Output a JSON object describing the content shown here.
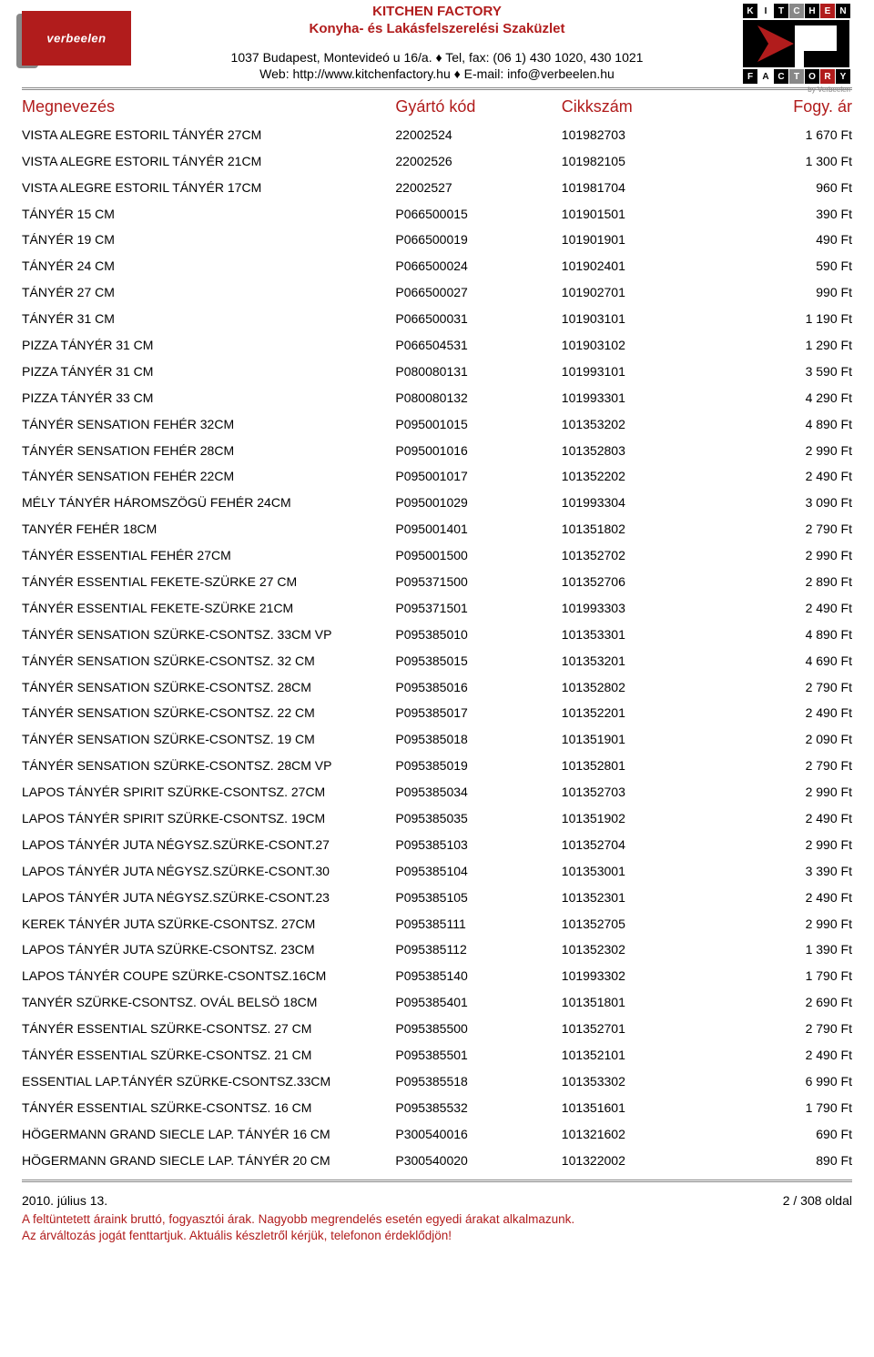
{
  "header": {
    "title": "KITCHEN FACTORY",
    "subtitle": "Konyha- és Lakásfelszerelési Szaküzlet",
    "address_line": "1037 Budapest, Montevideó u 16/a. ♦ Tel, fax: (06 1) 430 1020, 430 1021",
    "web_line": "Web: http://www.kitchenfactory.hu ♦ E-mail: info@verbeelen.hu",
    "logo_left_text": "verbeelen",
    "logo_right_word1": "KITCHEN",
    "logo_right_word2": "FACTORY",
    "logo_right_small": "by Verbeelen"
  },
  "columns": {
    "name": "Megnevezés",
    "code": "Gyártó kód",
    "item": "Cikkszám",
    "price": "Fogy. ár"
  },
  "rows": [
    {
      "name": "VISTA ALEGRE ESTORIL TÁNYÉR 27CM",
      "code": "22002524",
      "item": "101982703",
      "price": "1 670 Ft"
    },
    {
      "name": "VISTA ALEGRE ESTORIL TÁNYÉR 21CM",
      "code": "22002526",
      "item": "101982105",
      "price": "1 300 Ft"
    },
    {
      "name": "VISTA ALEGRE ESTORIL TÁNYÉR 17CM",
      "code": "22002527",
      "item": "101981704",
      "price": "960 Ft"
    },
    {
      "name": "TÁNYÉR 15 CM",
      "code": "P066500015",
      "item": "101901501",
      "price": "390 Ft"
    },
    {
      "name": "TÁNYÉR 19 CM",
      "code": "P066500019",
      "item": "101901901",
      "price": "490 Ft"
    },
    {
      "name": "TÁNYÉR 24 CM",
      "code": "P066500024",
      "item": "101902401",
      "price": "590 Ft"
    },
    {
      "name": "TÁNYÉR 27 CM",
      "code": "P066500027",
      "item": "101902701",
      "price": "990 Ft"
    },
    {
      "name": "TÁNYÉR 31 CM",
      "code": "P066500031",
      "item": "101903101",
      "price": "1 190 Ft"
    },
    {
      "name": "PIZZA TÁNYÉR 31 CM",
      "code": "P066504531",
      "item": "101903102",
      "price": "1 290 Ft"
    },
    {
      "name": "PIZZA TÁNYÉR 31 CM",
      "code": "P080080131",
      "item": "101993101",
      "price": "3 590 Ft"
    },
    {
      "name": "PIZZA TÁNYÉR 33 CM",
      "code": "P080080132",
      "item": "101993301",
      "price": "4 290 Ft"
    },
    {
      "name": "TÁNYÉR SENSATION FEHÉR 32CM",
      "code": "P095001015",
      "item": "101353202",
      "price": "4 890 Ft"
    },
    {
      "name": "TÁNYÉR SENSATION FEHÉR 28CM",
      "code": "P095001016",
      "item": "101352803",
      "price": "2 990 Ft"
    },
    {
      "name": "TÁNYÉR SENSATION FEHÉR 22CM",
      "code": "P095001017",
      "item": "101352202",
      "price": "2 490 Ft"
    },
    {
      "name": "MÉLY TÁNYÉR HÁROMSZÖGÜ FEHÉR 24CM",
      "code": "P095001029",
      "item": "101993304",
      "price": "3 090 Ft"
    },
    {
      "name": "TANYÉR FEHÉR 18CM",
      "code": "P095001401",
      "item": "101351802",
      "price": "2 790 Ft"
    },
    {
      "name": "TÁNYÉR ESSENTIAL FEHÉR 27CM",
      "code": "P095001500",
      "item": "101352702",
      "price": "2 990 Ft"
    },
    {
      "name": "TÁNYÉR ESSENTIAL FEKETE-SZÜRKE 27 CM",
      "code": "P095371500",
      "item": "101352706",
      "price": "2 890 Ft"
    },
    {
      "name": "TÁNYÉR ESSENTIAL FEKETE-SZÜRKE 21CM",
      "code": "P095371501",
      "item": "101993303",
      "price": "2 490 Ft"
    },
    {
      "name": "TÁNYÉR SENSATION SZÜRKE-CSONTSZ. 33CM VP",
      "code": "P095385010",
      "item": "101353301",
      "price": "4 890 Ft"
    },
    {
      "name": "TÁNYÉR SENSATION SZÜRKE-CSONTSZ. 32 CM",
      "code": "P095385015",
      "item": "101353201",
      "price": "4 690 Ft"
    },
    {
      "name": "TÁNYÉR SENSATION SZÜRKE-CSONTSZ. 28CM",
      "code": "P095385016",
      "item": "101352802",
      "price": "2 790 Ft"
    },
    {
      "name": "TÁNYÉR SENSATION SZÜRKE-CSONTSZ. 22 CM",
      "code": "P095385017",
      "item": "101352201",
      "price": "2 490 Ft"
    },
    {
      "name": "TÁNYÉR SENSATION SZÜRKE-CSONTSZ. 19 CM",
      "code": "P095385018",
      "item": "101351901",
      "price": "2 090 Ft"
    },
    {
      "name": "TÁNYÉR SENSATION SZÜRKE-CSONTSZ. 28CM VP",
      "code": "P095385019",
      "item": "101352801",
      "price": "2 790 Ft"
    },
    {
      "name": "LAPOS TÁNYÉR SPIRIT SZÜRKE-CSONTSZ. 27CM",
      "code": "P095385034",
      "item": "101352703",
      "price": "2 990 Ft"
    },
    {
      "name": "LAPOS TÁNYÉR SPIRIT SZÜRKE-CSONTSZ. 19CM",
      "code": "P095385035",
      "item": "101351902",
      "price": "2 490 Ft"
    },
    {
      "name": "LAPOS TÁNYÉR JUTA NÉGYSZ.SZÜRKE-CSONT.27",
      "code": "P095385103",
      "item": "101352704",
      "price": "2 990 Ft"
    },
    {
      "name": "LAPOS TÁNYÉR JUTA NÉGYSZ.SZÜRKE-CSONT.30",
      "code": "P095385104",
      "item": "101353001",
      "price": "3 390 Ft"
    },
    {
      "name": "LAPOS TÁNYÉR JUTA NÉGYSZ.SZÜRKE-CSONT.23",
      "code": "P095385105",
      "item": "101352301",
      "price": "2 490 Ft"
    },
    {
      "name": "KEREK TÁNYÉR JUTA SZÜRKE-CSONTSZ. 27CM",
      "code": "P095385111",
      "item": "101352705",
      "price": "2 990 Ft"
    },
    {
      "name": "LAPOS TÁNYÉR JUTA SZÜRKE-CSONTSZ. 23CM",
      "code": "P095385112",
      "item": "101352302",
      "price": "1 390 Ft"
    },
    {
      "name": "LAPOS TÁNYÉR COUPE SZÜRKE-CSONTSZ.16CM",
      "code": "P095385140",
      "item": "101993302",
      "price": "1 790 Ft"
    },
    {
      "name": "TANYÉR SZÜRKE-CSONTSZ. OVÁL BELSÖ 18CM",
      "code": "P095385401",
      "item": "101351801",
      "price": "2 690 Ft"
    },
    {
      "name": "TÁNYÉR ESSENTIAL SZÜRKE-CSONTSZ. 27 CM",
      "code": "P095385500",
      "item": "101352701",
      "price": "2 790 Ft"
    },
    {
      "name": "TÁNYÉR ESSENTIAL SZÜRKE-CSONTSZ. 21 CM",
      "code": "P095385501",
      "item": "101352101",
      "price": "2 490 Ft"
    },
    {
      "name": "ESSENTIAL LAP.TÁNYÉR SZÜRKE-CSONTSZ.33CM",
      "code": "P095385518",
      "item": "101353302",
      "price": "6 990 Ft"
    },
    {
      "name": "TÁNYÉR ESSENTIAL SZÜRKE-CSONTSZ. 16 CM",
      "code": "P095385532",
      "item": "101351601",
      "price": "1 790 Ft"
    },
    {
      "name": "HÖGERMANN GRAND SIECLE LAP. TÁNYÉR 16 CM",
      "code": "P300540016",
      "item": "101321602",
      "price": "690 Ft"
    },
    {
      "name": "HÖGERMANN GRAND SIECLE LAP. TÁNYÉR 20 CM",
      "code": "P300540020",
      "item": "101322002",
      "price": "890 Ft"
    }
  ],
  "footer": {
    "date": "2010. július 13.",
    "page": "2 / 308 oldal",
    "note1": "A feltüntetett áraink bruttó, fogyasztói árak. Nagyobb megrendelés esetén egyedi árakat alkalmazunk.",
    "note2": "Az árváltozás jogát fenttartjuk. Aktuális készletről kérjük, telefonon érdeklődjön!"
  },
  "colors": {
    "brand_red": "#b11c1c",
    "text": "#000000",
    "grey": "#888888",
    "background": "#ffffff"
  }
}
